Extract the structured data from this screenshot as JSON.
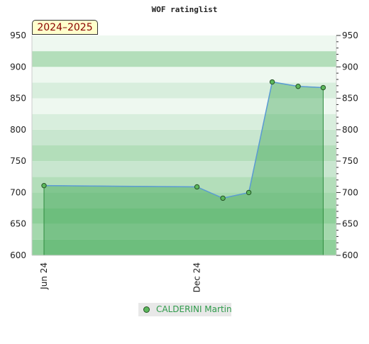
{
  "chart_data": {
    "type": "line",
    "title": "WOF ratinglist",
    "period_badge": "2024–2025",
    "xlabel": "",
    "ylabel": "",
    "ylim": [
      600,
      950
    ],
    "yticks": [
      600,
      650,
      700,
      750,
      800,
      850,
      900,
      950
    ],
    "x_tick_labels": [
      {
        "label": "Jun 24",
        "date": "2024-06-01"
      },
      {
        "label": "Dec 24",
        "date": "2024-12-01"
      }
    ],
    "grid": true,
    "legend_position": "bottom-center",
    "series": [
      {
        "name": "CALDERINI Martin",
        "color": "#5cb85c",
        "points": [
          {
            "date": "2024-06-01",
            "value": 711
          },
          {
            "date": "2024-12-01",
            "value": 709
          },
          {
            "date": "2025-01-01",
            "value": 691
          },
          {
            "date": "2025-02-01",
            "value": 700
          },
          {
            "date": "2025-03-01",
            "value": 876
          },
          {
            "date": "2025-04-01",
            "value": 869
          },
          {
            "date": "2025-05-01",
            "value": 867
          }
        ]
      }
    ]
  }
}
